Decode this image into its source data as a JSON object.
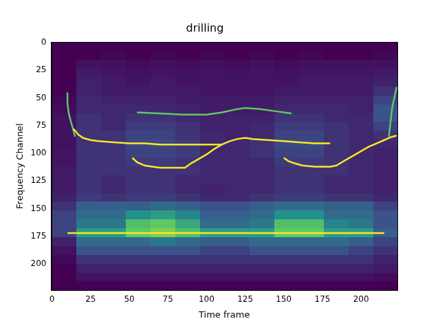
{
  "chart_data": {
    "type": "heatmap",
    "title": "drilling",
    "x_label": "Time frame",
    "y_label": "Frequency Channel",
    "xlim": [
      -0.5,
      223.5
    ],
    "ylim": [
      223.5,
      -0.5
    ],
    "xticks": [
      0,
      25,
      50,
      75,
      100,
      125,
      150,
      175,
      200
    ],
    "yticks": [
      0,
      25,
      50,
      75,
      100,
      125,
      150,
      175,
      200
    ],
    "grid": false,
    "x_edges": [
      0,
      16,
      32,
      48,
      64,
      80,
      96,
      112,
      128,
      144,
      160,
      176,
      192,
      208,
      224
    ],
    "y_edges": [
      0,
      8,
      16,
      24,
      32,
      40,
      48,
      56,
      64,
      72,
      80,
      88,
      96,
      104,
      112,
      120,
      128,
      136,
      144,
      152,
      160,
      168,
      176,
      184,
      192,
      200,
      208,
      216,
      224
    ],
    "cells": [
      [
        0,
        0,
        0,
        0,
        0,
        0,
        0,
        0,
        0,
        0,
        0,
        0,
        0,
        0
      ],
      [
        0,
        0,
        0.02,
        0,
        0.02,
        0,
        0.02,
        0,
        0.02,
        0,
        0.02,
        0,
        0,
        0.02
      ],
      [
        0,
        0.05,
        0.05,
        0.03,
        0.05,
        0.03,
        0.05,
        0.03,
        0.05,
        0.03,
        0.05,
        0.05,
        0.05,
        0.05
      ],
      [
        0,
        0.08,
        0.06,
        0.05,
        0.06,
        0.05,
        0.06,
        0.05,
        0.06,
        0.05,
        0.06,
        0.06,
        0.06,
        0.08
      ],
      [
        0,
        0.1,
        0.08,
        0.06,
        0.08,
        0.06,
        0.06,
        0.06,
        0.06,
        0.06,
        0.08,
        0.08,
        0.08,
        0.1
      ],
      [
        0,
        0.1,
        0.08,
        0.08,
        0.08,
        0.08,
        0.06,
        0.06,
        0.06,
        0.08,
        0.08,
        0.08,
        0.08,
        0.15
      ],
      [
        0.02,
        0.12,
        0.1,
        0.1,
        0.1,
        0.08,
        0.08,
        0.08,
        0.08,
        0.1,
        0.1,
        0.1,
        0.1,
        0.2
      ],
      [
        0.03,
        0.12,
        0.12,
        0.12,
        0.12,
        0.1,
        0.08,
        0.08,
        0.08,
        0.12,
        0.12,
        0.12,
        0.1,
        0.25
      ],
      [
        0.05,
        0.15,
        0.12,
        0.15,
        0.15,
        0.12,
        0.1,
        0.1,
        0.1,
        0.15,
        0.15,
        0.12,
        0.12,
        0.25
      ],
      [
        0.05,
        0.15,
        0.12,
        0.18,
        0.18,
        0.15,
        0.1,
        0.1,
        0.12,
        0.18,
        0.18,
        0.15,
        0.12,
        0.2
      ],
      [
        0.05,
        0.15,
        0.15,
        0.2,
        0.2,
        0.15,
        0.12,
        0.1,
        0.12,
        0.2,
        0.2,
        0.15,
        0.12,
        0.15
      ],
      [
        0.05,
        0.15,
        0.15,
        0.22,
        0.22,
        0.18,
        0.12,
        0.12,
        0.15,
        0.22,
        0.22,
        0.15,
        0.12,
        0.12
      ],
      [
        0.06,
        0.15,
        0.15,
        0.2,
        0.2,
        0.18,
        0.12,
        0.12,
        0.15,
        0.2,
        0.2,
        0.15,
        0.12,
        0.1
      ],
      [
        0.06,
        0.15,
        0.15,
        0.18,
        0.18,
        0.15,
        0.12,
        0.12,
        0.12,
        0.18,
        0.18,
        0.15,
        0.12,
        0.1
      ],
      [
        0.08,
        0.15,
        0.15,
        0.15,
        0.15,
        0.15,
        0.12,
        0.12,
        0.12,
        0.15,
        0.15,
        0.15,
        0.12,
        0.1
      ],
      [
        0.08,
        0.15,
        0.12,
        0.15,
        0.15,
        0.12,
        0.12,
        0.12,
        0.12,
        0.15,
        0.15,
        0.12,
        0.12,
        0.1
      ],
      [
        0.08,
        0.15,
        0.12,
        0.15,
        0.15,
        0.12,
        0.1,
        0.12,
        0.12,
        0.15,
        0.15,
        0.12,
        0.12,
        0.1
      ],
      [
        0.1,
        0.18,
        0.15,
        0.18,
        0.18,
        0.15,
        0.12,
        0.12,
        0.15,
        0.18,
        0.18,
        0.15,
        0.15,
        0.12
      ],
      [
        0.15,
        0.3,
        0.3,
        0.3,
        0.35,
        0.3,
        0.25,
        0.25,
        0.3,
        0.35,
        0.35,
        0.3,
        0.3,
        0.2
      ],
      [
        0.2,
        0.35,
        0.35,
        0.5,
        0.55,
        0.45,
        0.3,
        0.3,
        0.35,
        0.5,
        0.5,
        0.35,
        0.35,
        0.25
      ],
      [
        0.2,
        0.4,
        0.4,
        0.7,
        0.75,
        0.6,
        0.35,
        0.35,
        0.4,
        0.7,
        0.7,
        0.45,
        0.4,
        0.25
      ],
      [
        0.2,
        0.55,
        0.55,
        0.75,
        0.8,
        0.7,
        0.55,
        0.55,
        0.55,
        0.75,
        0.75,
        0.55,
        0.55,
        0.3
      ],
      [
        0.1,
        0.35,
        0.35,
        0.35,
        0.4,
        0.35,
        0.3,
        0.3,
        0.35,
        0.35,
        0.35,
        0.35,
        0.3,
        0.2
      ],
      [
        0.05,
        0.25,
        0.25,
        0.25,
        0.25,
        0.25,
        0.2,
        0.2,
        0.25,
        0.25,
        0.25,
        0.25,
        0.2,
        0.15
      ],
      [
        0.02,
        0.15,
        0.15,
        0.15,
        0.15,
        0.15,
        0.15,
        0.15,
        0.15,
        0.15,
        0.15,
        0.15,
        0.15,
        0.1
      ],
      [
        0,
        0.1,
        0.1,
        0.1,
        0.1,
        0.1,
        0.1,
        0.1,
        0.1,
        0.1,
        0.1,
        0.1,
        0.1,
        0.08
      ],
      [
        0,
        0.05,
        0.05,
        0.05,
        0.05,
        0.05,
        0.05,
        0.05,
        0.05,
        0.05,
        0.05,
        0.05,
        0.05,
        0.03
      ],
      [
        0,
        0,
        0,
        0,
        0,
        0,
        0,
        0,
        0,
        0,
        0,
        0,
        0,
        0
      ]
    ],
    "series": [
      {
        "color": "#fde725",
        "x": [
          14,
          17,
          20,
          25,
          30,
          40,
          50,
          60,
          70,
          80,
          90,
          100,
          110
        ],
        "values": [
          78,
          83,
          86,
          88,
          89,
          90,
          91,
          91,
          92,
          92,
          92,
          92,
          92
        ]
      },
      {
        "color": "#fde725",
        "x": [
          52,
          55,
          60,
          65,
          70,
          80,
          86,
          90,
          95,
          100,
          105,
          110,
          115,
          120,
          125,
          130,
          140,
          150,
          160,
          170,
          180
        ],
        "values": [
          104,
          108,
          111,
          112,
          113,
          113,
          113,
          109,
          105,
          101,
          96,
          92,
          89,
          87,
          86,
          87,
          88,
          89,
          90,
          91,
          91
        ]
      },
      {
        "color": "#fde725",
        "x": [
          150,
          153,
          157,
          162,
          170,
          180,
          184,
          190,
          195,
          200,
          205,
          210,
          215,
          220,
          223
        ],
        "values": [
          104,
          107,
          109,
          111,
          112,
          112,
          111,
          106,
          102,
          98,
          94,
          91,
          88,
          85,
          84
        ]
      },
      {
        "color": "#5ec962",
        "x": [
          15,
          13,
          11,
          10,
          10
        ],
        "values": [
          85,
          75,
          65,
          55,
          45
        ]
      },
      {
        "color": "#5ec962",
        "x": [
          55,
          70,
          85,
          100,
          110,
          120,
          125,
          135,
          145,
          155
        ],
        "values": [
          63,
          64,
          65,
          65,
          63,
          60,
          59,
          60,
          62,
          64
        ]
      },
      {
        "color": "#5ec962",
        "x": [
          218,
          220,
          223
        ],
        "values": [
          85,
          60,
          40
        ]
      },
      {
        "color": "#fde725",
        "x": [
          10,
          215
        ],
        "values": [
          172,
          172
        ]
      }
    ]
  }
}
